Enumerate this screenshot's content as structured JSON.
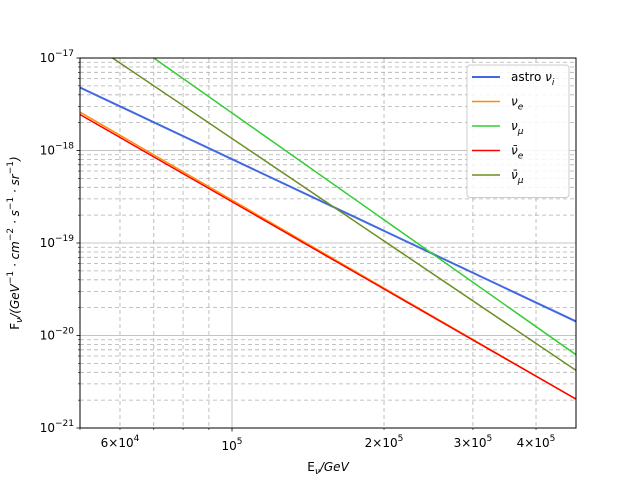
{
  "chart_data": {
    "type": "line",
    "xscale": "log",
    "yscale": "log",
    "xlim": [
      50000,
      480000
    ],
    "ylim": [
      1e-21,
      1e-17
    ],
    "grid": true,
    "minor_grid": true,
    "legend_position": "top-right",
    "xlabel": "E_ν/GeV",
    "ylabel": "F_ν/(GeV⁻¹·cm⁻²·s⁻¹·sr⁻¹)",
    "x_ticks": {
      "major": [
        {
          "value": 100000,
          "label": "10^5"
        }
      ],
      "minor": [
        {
          "value": 60000,
          "label": "6×10^4"
        },
        {
          "value": 200000,
          "label": "2×10^5"
        },
        {
          "value": 300000,
          "label": "3×10^5"
        },
        {
          "value": 400000,
          "label": "4×10^5"
        }
      ]
    },
    "y_ticks": [
      {
        "value": 1e-17,
        "label": "10^-17"
      },
      {
        "value": 1e-18,
        "label": "10^-18"
      },
      {
        "value": 1e-19,
        "label": "10^-19"
      },
      {
        "value": 1e-20,
        "label": "10^-20"
      },
      {
        "value": 1e-21,
        "label": "10^-21"
      }
    ],
    "series": [
      {
        "name": "astro ν_i",
        "color": "#4169e1",
        "width": 2,
        "points": [
          [
            50000,
            4.8e-18
          ],
          [
            480000,
            1.42e-20
          ]
        ]
      },
      {
        "name": "ν_e",
        "color": "#ff8c00",
        "width": 1.5,
        "points": [
          [
            50000,
            2.6e-18
          ],
          [
            480000,
            2.05e-21
          ]
        ]
      },
      {
        "name": "ν_μ",
        "color": "#32cd32",
        "width": 1.5,
        "points": [
          [
            70000,
            1e-17
          ],
          [
            480000,
            6.2e-21
          ]
        ]
      },
      {
        "name": "ν̄_e",
        "color": "#ff0000",
        "width": 1.5,
        "points": [
          [
            50000,
            2.45e-18
          ],
          [
            480000,
            2.05e-21
          ]
        ]
      },
      {
        "name": "ν̄_μ",
        "color": "#6b8e23",
        "width": 1.5,
        "points": [
          [
            58000,
            1e-17
          ],
          [
            480000,
            4.2e-21
          ]
        ]
      }
    ]
  }
}
